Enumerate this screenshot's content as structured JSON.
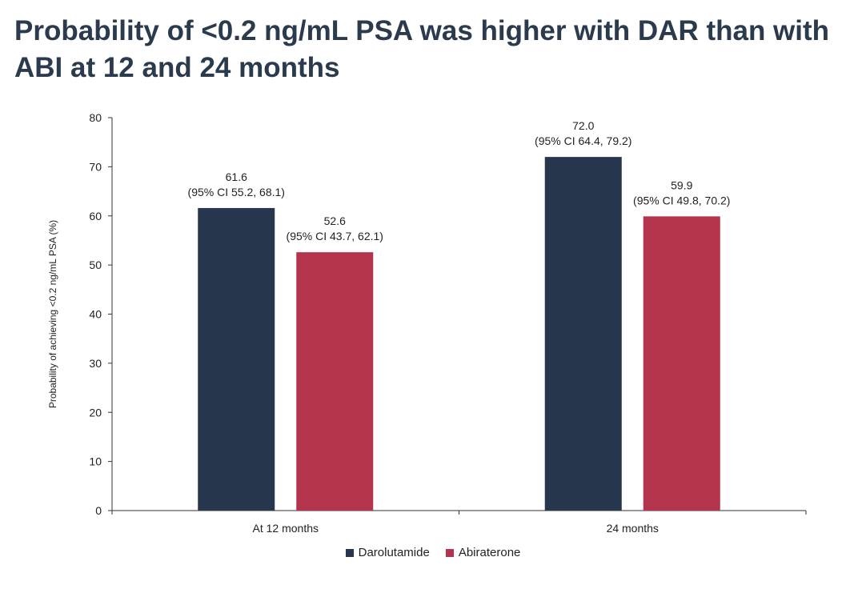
{
  "title": "Probability of <0.2 ng/mL PSA was higher with DAR than with ABI at 12 and 24 months",
  "chart_data": {
    "type": "bar",
    "title": "Probability of <0.2 ng/mL PSA was higher with DAR than with ABI at 12 and 24 months",
    "categories": [
      "At 12 months",
      "24 months"
    ],
    "ylabel": "Probability of achieving <0.2 ng/mL PSA (%)",
    "xlabel": "",
    "ylim": [
      0,
      80
    ],
    "yticks": [
      0,
      10,
      20,
      30,
      40,
      50,
      60,
      70,
      80
    ],
    "grid": false,
    "legend_position": "bottom-center",
    "series": [
      {
        "name": "Darolutamide",
        "color": "#27374d",
        "values": [
          61.6,
          72.0
        ],
        "value_labels": [
          "61.6",
          "72.0"
        ],
        "ci_labels": [
          "(95% CI 55.2, 68.1)",
          "(95% CI 64.4, 79.2)"
        ]
      },
      {
        "name": "Abiraterone",
        "color": "#b3344c",
        "values": [
          52.6,
          59.9
        ],
        "value_labels": [
          "52.6",
          "59.9"
        ],
        "ci_labels": [
          "(95% CI 43.7, 62.1)",
          "(95% CI 49.8, 70.2)"
        ]
      }
    ]
  }
}
